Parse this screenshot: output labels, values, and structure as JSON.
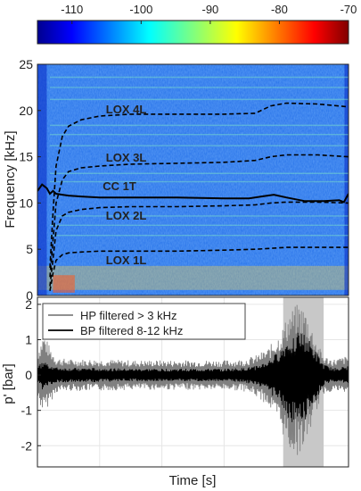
{
  "chart_data": [
    {
      "type": "heatmap",
      "title": "",
      "xlabel": "",
      "ylabel": "Frequency [kHz]",
      "ylim": [
        0,
        25
      ],
      "yticks": [
        0,
        5,
        10,
        15,
        20,
        25
      ],
      "colorbar": {
        "range": [
          -115,
          -70
        ],
        "ticks": [
          -110,
          -100,
          -90,
          -80,
          -70
        ],
        "colormap": "jet",
        "position": "top"
      },
      "time_range": [
        0,
        100
      ],
      "grid": true,
      "curves": [
        {
          "name": "LOX 4L",
          "style": "dashed",
          "color": "#000000",
          "x": [
            4,
            5,
            6,
            8,
            10,
            14,
            20,
            30,
            45,
            60,
            70,
            75,
            80,
            90,
            100
          ],
          "y": [
            3,
            9,
            14,
            17.2,
            18.3,
            19.0,
            19.4,
            19.6,
            19.6,
            19.6,
            19.7,
            20.5,
            20.8,
            20.7,
            20.4
          ],
          "label_at": [
            22,
            19.7
          ]
        },
        {
          "name": "LOX 3L",
          "style": "dashed",
          "color": "#000000",
          "x": [
            4,
            5,
            6,
            8,
            10,
            14,
            20,
            30,
            45,
            60,
            70,
            75,
            80,
            90,
            100
          ],
          "y": [
            2,
            6,
            10,
            12.5,
            13.4,
            13.8,
            14.0,
            14.2,
            14.3,
            14.4,
            14.6,
            15.0,
            15.2,
            15.2,
            15.0
          ],
          "label_at": [
            22,
            14.5
          ]
        },
        {
          "name": "CC 1T",
          "style": "solid",
          "color": "#000000",
          "x": [
            0,
            1.5,
            3,
            4,
            5,
            6,
            8,
            10,
            14,
            20,
            30,
            45,
            60,
            68,
            72,
            76,
            80,
            86,
            92,
            97,
            98.5,
            100
          ],
          "y": [
            11.3,
            12.0,
            11.6,
            11.0,
            11.3,
            11.0,
            10.9,
            10.8,
            10.7,
            10.6,
            10.6,
            10.6,
            10.5,
            10.5,
            10.7,
            10.9,
            10.6,
            10.2,
            10.2,
            10.3,
            10.1,
            11.0
          ],
          "label_at": [
            21,
            11.4
          ]
        },
        {
          "name": "LOX 2L",
          "style": "dashed",
          "color": "#000000",
          "x": [
            4,
            5,
            6,
            8,
            10,
            14,
            20,
            30,
            45,
            60,
            70,
            75,
            80,
            90,
            100
          ],
          "y": [
            1,
            4,
            7,
            8.6,
            9.0,
            9.3,
            9.5,
            9.6,
            9.6,
            9.7,
            9.8,
            10.0,
            10.1,
            10.1,
            10.0
          ],
          "label_at": [
            22,
            8.2
          ]
        },
        {
          "name": "LOX 1L",
          "style": "dashed",
          "color": "#000000",
          "x": [
            4,
            5,
            6,
            8,
            10,
            14,
            20,
            30,
            45,
            60,
            70,
            75,
            80,
            90,
            100
          ],
          "y": [
            0.5,
            2.4,
            3.8,
            4.4,
            4.6,
            4.7,
            4.8,
            4.8,
            4.8,
            4.9,
            5.0,
            5.1,
            5.2,
            5.2,
            5.2
          ],
          "label_at": [
            22,
            3.4
          ]
        }
      ]
    },
    {
      "type": "area",
      "title": "",
      "xlabel": "Time [s]",
      "ylabel": "p' [bar]",
      "ylim": [
        -2.6,
        2.2
      ],
      "yticks": [
        -2,
        -1,
        0,
        1,
        2
      ],
      "grid": true,
      "legend": "top-left",
      "highlight": {
        "x": [
          79,
          92
        ],
        "color": "#c8c8c8"
      },
      "series": [
        {
          "name": "HP filtered > 3 kHz",
          "color": "#808080",
          "x": [
            0,
            2,
            4,
            6,
            10,
            20,
            30,
            40,
            50,
            60,
            66,
            70,
            74,
            78,
            81,
            84,
            86,
            88,
            90,
            92,
            95,
            100
          ],
          "upper": [
            0.7,
            1.2,
            0.8,
            0.5,
            0.45,
            0.45,
            0.42,
            0.42,
            0.42,
            0.42,
            0.45,
            0.55,
            0.75,
            1.2,
            1.8,
            2.05,
            1.9,
            1.4,
            0.9,
            0.55,
            0.45,
            0.55
          ],
          "lower": [
            -0.7,
            -1.1,
            -0.8,
            -0.5,
            -0.45,
            -0.45,
            -0.42,
            -0.42,
            -0.42,
            -0.42,
            -0.45,
            -0.6,
            -0.85,
            -1.5,
            -2.15,
            -2.3,
            -2.0,
            -1.5,
            -0.95,
            -0.55,
            -0.45,
            -0.55
          ]
        },
        {
          "name": "BP filtered 8-12 kHz",
          "color": "#000000",
          "x": [
            0,
            2,
            4,
            6,
            10,
            20,
            30,
            40,
            50,
            60,
            66,
            70,
            74,
            78,
            81,
            84,
            86,
            88,
            90,
            92,
            95,
            100
          ],
          "upper": [
            0.25,
            0.4,
            0.3,
            0.22,
            0.2,
            0.2,
            0.18,
            0.18,
            0.18,
            0.18,
            0.2,
            0.25,
            0.4,
            0.7,
            1.1,
            1.25,
            1.15,
            0.9,
            0.6,
            0.3,
            0.2,
            0.25
          ],
          "lower": [
            -0.25,
            -0.45,
            -0.3,
            -0.22,
            -0.2,
            -0.2,
            -0.18,
            -0.18,
            -0.18,
            -0.18,
            -0.2,
            -0.28,
            -0.45,
            -0.8,
            -1.3,
            -1.45,
            -1.3,
            -1.0,
            -0.65,
            -0.3,
            -0.2,
            -0.25
          ]
        }
      ]
    }
  ]
}
